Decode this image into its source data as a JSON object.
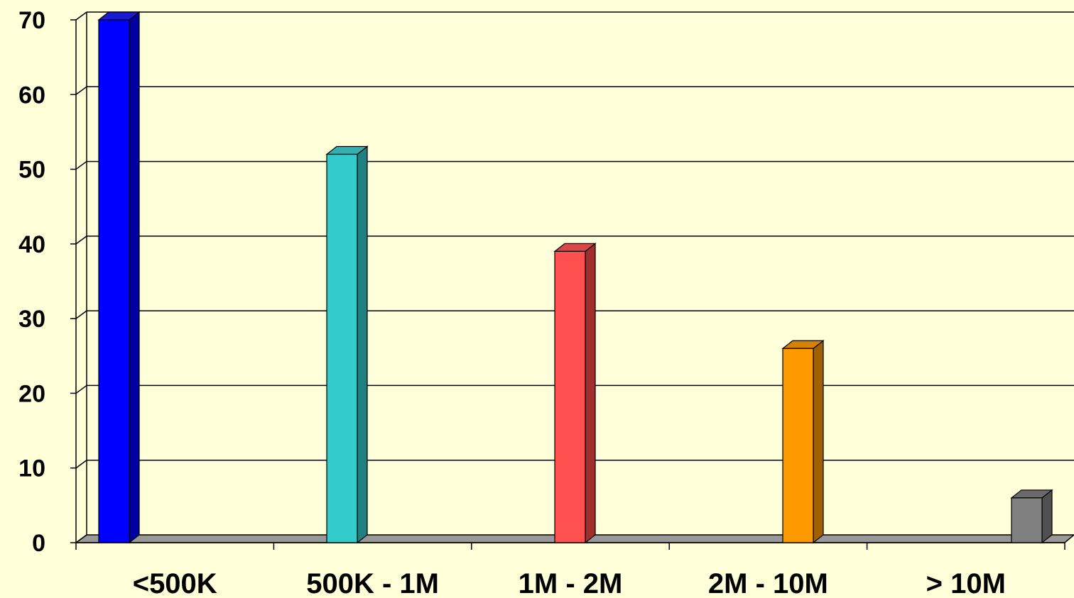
{
  "chart_data": {
    "type": "bar",
    "title": "",
    "xlabel": "",
    "ylabel": "",
    "categories": [
      "<500K",
      "500K - 1M",
      "1M - 2M",
      "2M - 10M",
      "> 10M"
    ],
    "values": [
      70,
      52,
      39,
      26,
      6
    ],
    "ylim": [
      0,
      70
    ],
    "yticks": [
      0,
      10,
      20,
      30,
      40,
      50,
      60,
      70
    ],
    "grid": true,
    "legend": "none",
    "style": "3d",
    "bar_colors": [
      "#0000ff",
      "#33cccc",
      "#ff5050",
      "#ff9900",
      "#808080"
    ],
    "bar_side_colors": [
      "#0000a0",
      "#208080",
      "#a03030",
      "#a06000",
      "#505050"
    ],
    "bar_top_colors": [
      "#1a1ad0",
      "#30b0b0",
      "#d84848",
      "#d88000",
      "#6a6a6a"
    ],
    "background_color": "#ffffd9",
    "floor_color": "#999999",
    "gridline_color": "#000000"
  }
}
